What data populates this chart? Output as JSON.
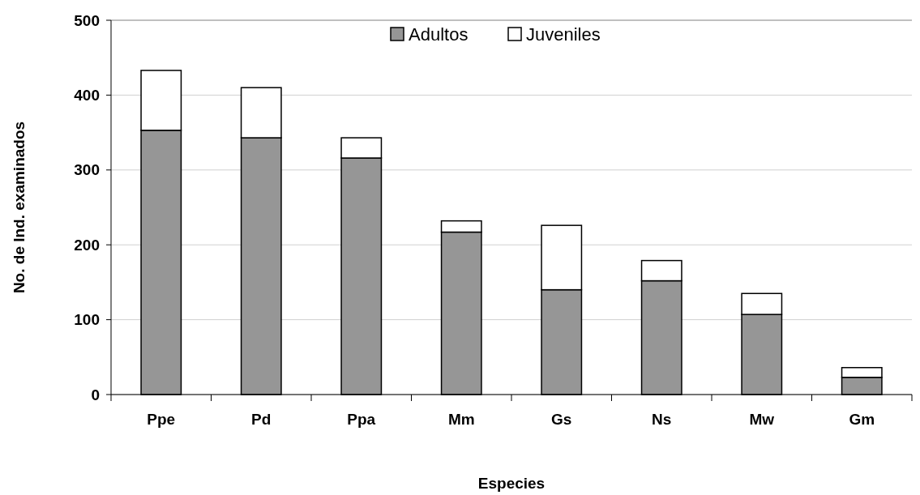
{
  "chart_data": {
    "type": "bar",
    "xlabel": "Especies",
    "ylabel": "No. de Ind. examinados",
    "categories": [
      "Ppe",
      "Pd",
      "Ppa",
      "Mm",
      "Gs",
      "Ns",
      "Mw",
      "Gm"
    ],
    "series": [
      {
        "name": "Adultos",
        "color": "#969696",
        "values": [
          353,
          343,
          316,
          217,
          140,
          152,
          107,
          23
        ]
      },
      {
        "name": "Juveniles",
        "color": "#ffffff",
        "values": [
          80,
          67,
          27,
          15,
          86,
          27,
          28,
          13
        ]
      }
    ],
    "stacked": true,
    "ylim": [
      0,
      500
    ],
    "yticks": [
      0,
      100,
      200,
      300,
      400,
      500
    ],
    "grid": "y",
    "legend": "top"
  }
}
